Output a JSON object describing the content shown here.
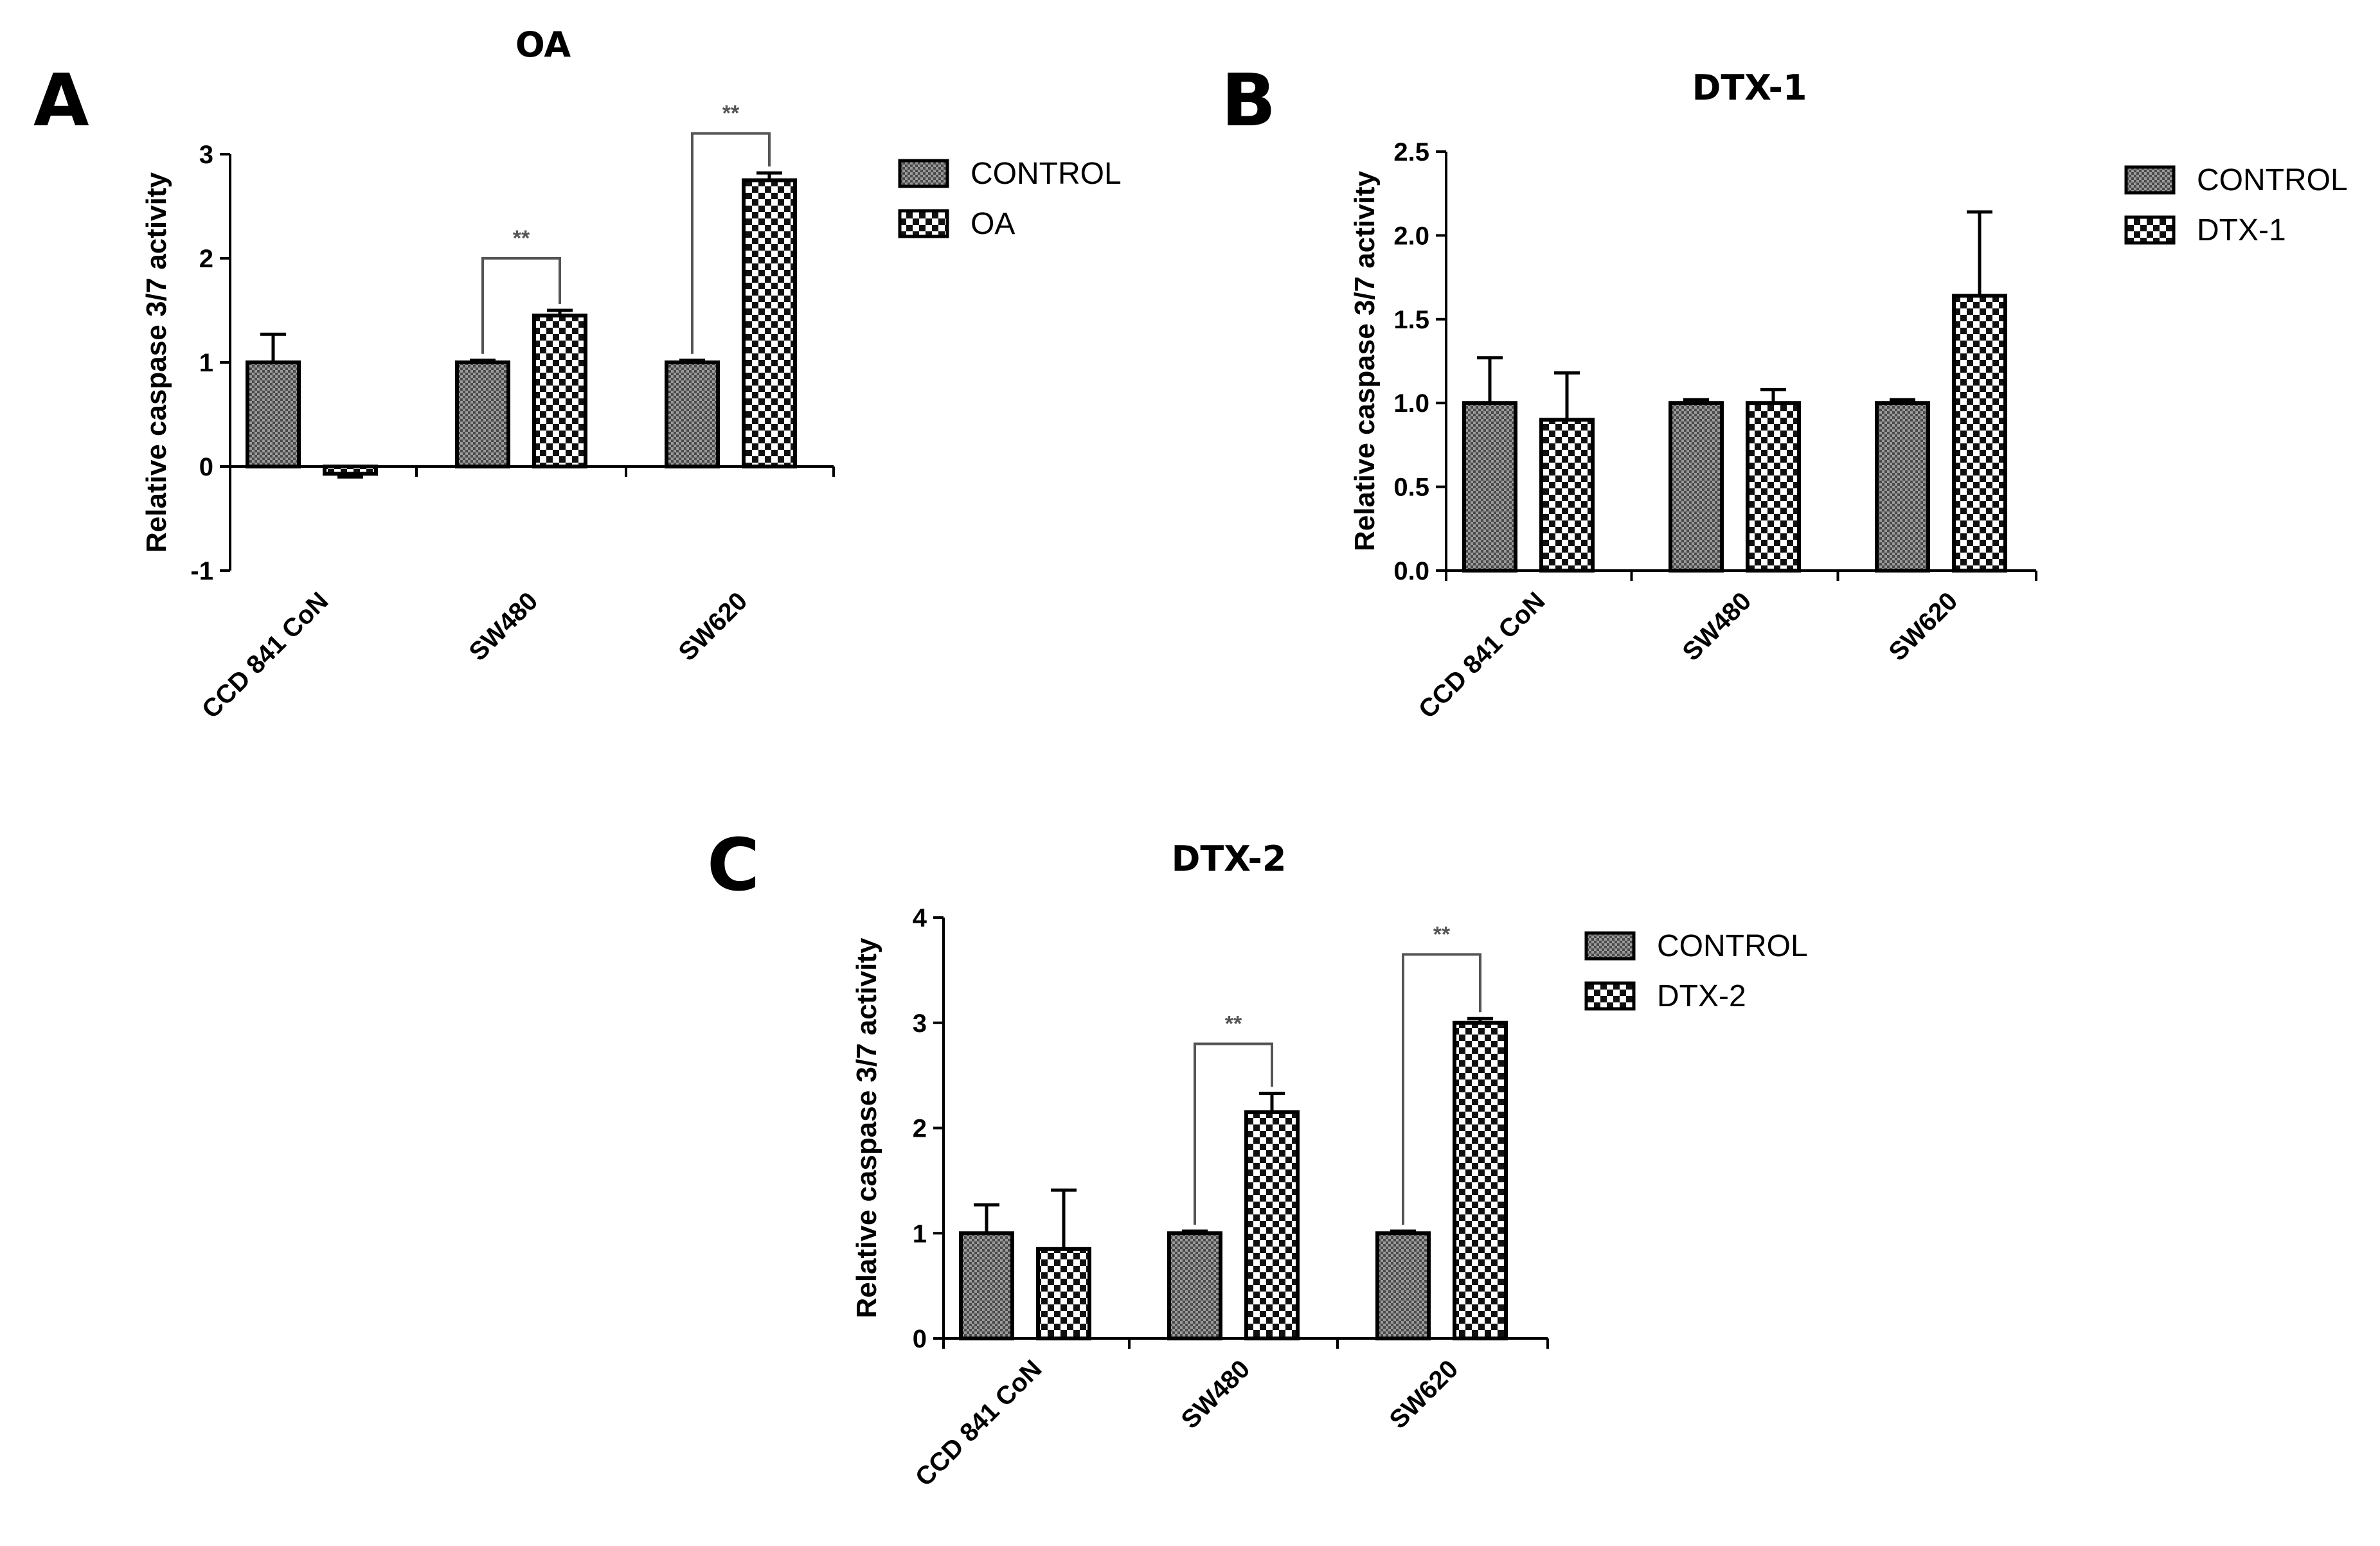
{
  "chart_data": [
    {
      "id": "A",
      "panel_letter": "A",
      "type": "bar",
      "title": "OA",
      "xlabel": "",
      "ylabel": "Relative caspase 3/7 activity",
      "ylim": [
        -1,
        3
      ],
      "yticks": [
        -1,
        0,
        1,
        2,
        3
      ],
      "ytick_labels": [
        "-1",
        "0",
        "1",
        "2",
        "3"
      ],
      "categories": [
        "CCD 841 CoN",
        "SW480",
        "SW620"
      ],
      "series": [
        {
          "name": "CONTROL",
          "pattern": "fine",
          "values": [
            1.0,
            1.0,
            1.0
          ],
          "errors": [
            0.27,
            0.02,
            0.02
          ]
        },
        {
          "name": "OA",
          "pattern": "checker",
          "values": [
            -0.07,
            1.45,
            2.75
          ],
          "errors": [
            0.03,
            0.05,
            0.07
          ]
        }
      ],
      "significance": [
        {
          "category": "SW480",
          "label": "**",
          "bracket_level": 2.0
        },
        {
          "category": "SW620",
          "label": "**",
          "bracket_level": 3.2
        }
      ],
      "legend_position": "top-right"
    },
    {
      "id": "B",
      "panel_letter": "B",
      "type": "bar",
      "title": "DTX-1",
      "xlabel": "",
      "ylabel": "Relative caspase 3/7 activity",
      "ylim": [
        0,
        2.5
      ],
      "yticks": [
        0,
        0.5,
        1,
        1.5,
        2,
        2.5
      ],
      "ytick_labels": [
        "0.0",
        "0.5",
        "1.0",
        "1.5",
        "2.0",
        "2.5"
      ],
      "categories": [
        "CCD 841 CoN",
        "SW480",
        "SW620"
      ],
      "series": [
        {
          "name": "CONTROL",
          "pattern": "fine",
          "values": [
            1.0,
            1.0,
            1.0
          ],
          "errors": [
            0.27,
            0.02,
            0.02
          ]
        },
        {
          "name": "DTX-1",
          "pattern": "checker",
          "values": [
            0.9,
            1.0,
            1.64
          ],
          "errors": [
            0.28,
            0.08,
            0.5
          ]
        }
      ],
      "significance": [],
      "legend_position": "top-right"
    },
    {
      "id": "C",
      "panel_letter": "C",
      "type": "bar",
      "title": "DTX-2",
      "xlabel": "",
      "ylabel": "Relative caspase 3/7 activity",
      "ylim": [
        0,
        4
      ],
      "yticks": [
        0,
        1,
        2,
        3,
        4
      ],
      "ytick_labels": [
        "0",
        "1",
        "2",
        "3",
        "4"
      ],
      "categories": [
        "CCD 841 CoN",
        "SW480",
        "SW620"
      ],
      "series": [
        {
          "name": "CONTROL",
          "pattern": "fine",
          "values": [
            1.0,
            1.0,
            1.0
          ],
          "errors": [
            0.27,
            0.02,
            0.02
          ]
        },
        {
          "name": "DTX-2",
          "pattern": "checker",
          "values": [
            0.85,
            2.15,
            3.0
          ],
          "errors": [
            0.56,
            0.18,
            0.04
          ]
        }
      ],
      "significance": [
        {
          "category": "SW480",
          "label": "**",
          "bracket_level": 2.8
        },
        {
          "category": "SW620",
          "label": "**",
          "bracket_level": 3.65
        }
      ],
      "legend_position": "top-right"
    }
  ]
}
